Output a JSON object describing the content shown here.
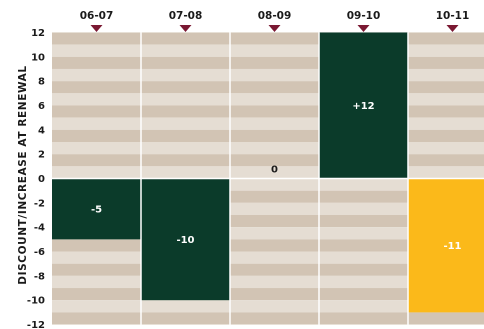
{
  "chart_data": {
    "type": "bar",
    "title": "",
    "xlabel": "",
    "ylabel": "DISCOUNT/INCREASE AT RENEWAL",
    "categories": [
      "06-07",
      "07-08",
      "08-09",
      "09-10",
      "10-11"
    ],
    "values": [
      -5,
      -10,
      0,
      12,
      -11
    ],
    "data_labels": [
      "-5",
      "-10",
      "0",
      "+12",
      "-11"
    ],
    "ylim": [
      -12,
      12
    ],
    "yticks": [
      12,
      10,
      8,
      6,
      4,
      2,
      0,
      -2,
      -4,
      -6,
      -8,
      -10,
      -12
    ],
    "category_marker": "triangle-down",
    "colors": {
      "bar_default": "#0b3b2a",
      "bar_highlight": "#fbb91a",
      "band_dark": "#d2c4b4",
      "band_light": "#e5ddd3",
      "marker": "#7a1832",
      "label_on_dark": "#ffffff",
      "label_on_band": "#1a1a1a"
    },
    "highlight_index": 4
  }
}
